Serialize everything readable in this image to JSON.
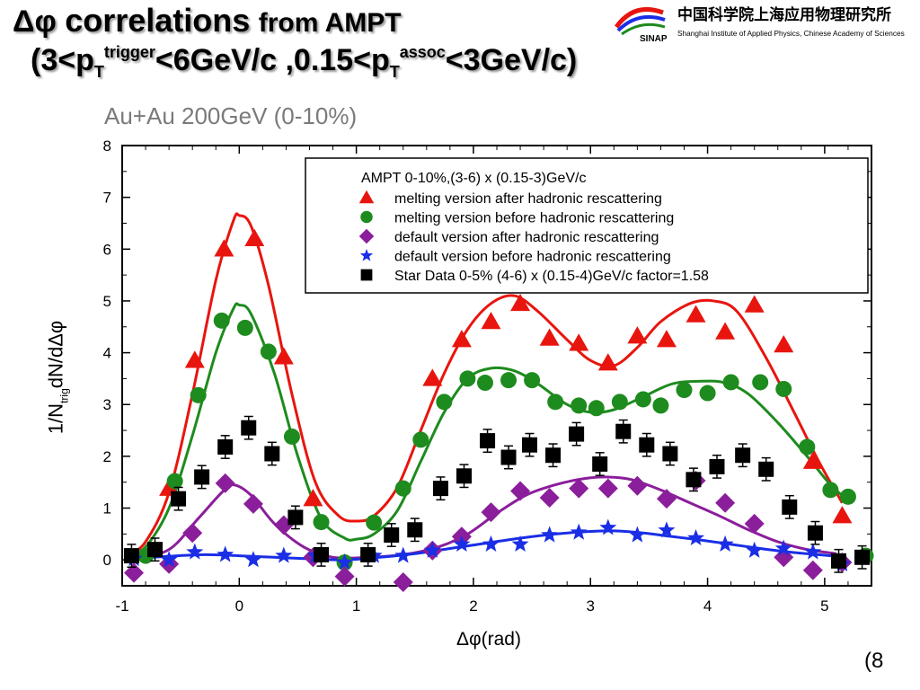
{
  "header": {
    "title_delta_phi": "Δφ",
    "title_main": "correlations",
    "title_rest": "from AMPT",
    "subtitle_line": {
      "open": "(3<p",
      "sub1": "T",
      "sup1": "trigger",
      "mid": "<6GeV/c ,0.15<p",
      "sub2": "T",
      "sup2": "assoc",
      "close": "<3GeV/c)"
    },
    "system": "Au+Au 200GeV (0-10%)"
  },
  "logo": {
    "chinese": "中国科学院上海应用物理研究所",
    "english": "Shanghai Institute of Applied Physics, Chinese Academy of Sciences",
    "abbrev": "SINAP"
  },
  "slide_number": "(8",
  "colors": {
    "red": "#e8150e",
    "green": "#1e8b1e",
    "purple": "#8b1e9b",
    "blue": "#1a2ee6",
    "black": "#000000"
  },
  "chart_data": {
    "type": "scatter",
    "ylabel": {
      "pre": "1/N",
      "sub": "trig",
      "post": "dN/dΔφ"
    },
    "xlabel": "Δφ(rad)",
    "xlim": [
      -1,
      5.4
    ],
    "ylim": [
      -0.5,
      8
    ],
    "x_ticks": [
      "-1",
      "0",
      "1",
      "2",
      "3",
      "4",
      "5"
    ],
    "y_ticks": [
      "0",
      "1",
      "2",
      "3",
      "4",
      "5",
      "6",
      "7",
      "8"
    ],
    "legend": {
      "header": "AMPT 0-10%,(3-6) x (0.15-3)GeV/c",
      "placement": "top-right",
      "entries": [
        {
          "label": "melting version after hadronic rescattering",
          "marker": "triangle",
          "color": "#e8150e"
        },
        {
          "label": "melting version before hadronic rescattering",
          "marker": "circle",
          "color": "#1e8b1e"
        },
        {
          "label": "default version after hadronic rescattering",
          "marker": "diamond",
          "color": "#8b1e9b"
        },
        {
          "label": "default version before hadronic rescattering",
          "marker": "star",
          "color": "#1a2ee6"
        },
        {
          "label": "Star Data 0-5% (4-6) x (0.15-4)GeV/c factor=1.58",
          "marker": "square",
          "color": "#000000"
        }
      ]
    },
    "series": [
      {
        "name": "melting version after hadronic rescattering",
        "marker": "triangle",
        "color": "#e8150e",
        "points": [
          [
            -0.6,
            1.38
          ],
          [
            -0.38,
            3.85
          ],
          [
            -0.13,
            6.0
          ],
          [
            0.13,
            6.2
          ],
          [
            0.38,
            3.92
          ],
          [
            0.63,
            1.18
          ],
          [
            1.65,
            3.5
          ],
          [
            1.9,
            4.25
          ],
          [
            2.15,
            4.6
          ],
          [
            2.4,
            4.95
          ],
          [
            2.65,
            4.28
          ],
          [
            2.9,
            4.18
          ],
          [
            3.15,
            3.8
          ],
          [
            3.4,
            4.32
          ],
          [
            3.65,
            4.25
          ],
          [
            3.9,
            4.73
          ],
          [
            4.15,
            4.4
          ],
          [
            4.4,
            4.92
          ],
          [
            4.65,
            4.15
          ],
          [
            4.9,
            1.9
          ],
          [
            5.15,
            0.85
          ]
        ]
      },
      {
        "name": "melting version before hadronic rescattering",
        "marker": "circle",
        "color": "#1e8b1e",
        "points": [
          [
            -0.8,
            0.08
          ],
          [
            -0.55,
            1.52
          ],
          [
            -0.35,
            3.18
          ],
          [
            -0.15,
            4.62
          ],
          [
            0.05,
            4.48
          ],
          [
            0.25,
            4.02
          ],
          [
            0.45,
            2.38
          ],
          [
            0.7,
            0.73
          ],
          [
            0.9,
            -0.05
          ],
          [
            1.15,
            0.72
          ],
          [
            1.4,
            1.38
          ],
          [
            1.55,
            2.32
          ],
          [
            1.75,
            3.05
          ],
          [
            1.95,
            3.5
          ],
          [
            2.1,
            3.42
          ],
          [
            2.3,
            3.47
          ],
          [
            2.5,
            3.47
          ],
          [
            2.7,
            3.05
          ],
          [
            2.9,
            2.98
          ],
          [
            3.05,
            2.93
          ],
          [
            3.25,
            3.05
          ],
          [
            3.45,
            3.1
          ],
          [
            3.6,
            2.98
          ],
          [
            3.8,
            3.28
          ],
          [
            4.0,
            3.22
          ],
          [
            4.2,
            3.43
          ],
          [
            4.45,
            3.43
          ],
          [
            4.65,
            3.3
          ],
          [
            4.85,
            2.18
          ],
          [
            5.05,
            1.35
          ],
          [
            5.2,
            1.22
          ],
          [
            5.35,
            0.08
          ]
        ]
      },
      {
        "name": "default version after hadronic rescattering",
        "marker": "diamond",
        "color": "#8b1e9b",
        "points": [
          [
            -0.9,
            -0.25
          ],
          [
            -0.6,
            -0.08
          ],
          [
            -0.4,
            0.52
          ],
          [
            -0.12,
            1.48
          ],
          [
            0.12,
            1.08
          ],
          [
            0.38,
            0.67
          ],
          [
            0.63,
            0.05
          ],
          [
            0.9,
            -0.32
          ],
          [
            1.4,
            -0.43
          ],
          [
            1.65,
            0.18
          ],
          [
            1.9,
            0.45
          ],
          [
            2.15,
            0.92
          ],
          [
            2.4,
            1.33
          ],
          [
            2.65,
            1.2
          ],
          [
            2.9,
            1.38
          ],
          [
            3.15,
            1.38
          ],
          [
            3.4,
            1.43
          ],
          [
            3.65,
            1.18
          ],
          [
            3.9,
            1.53
          ],
          [
            4.15,
            1.1
          ],
          [
            4.4,
            0.7
          ],
          [
            4.65,
            0.05
          ],
          [
            4.9,
            -0.2
          ],
          [
            5.15,
            -0.05
          ]
        ]
      },
      {
        "name": "default version before hadronic rescattering",
        "marker": "star",
        "color": "#1a2ee6",
        "points": [
          [
            -0.9,
            0.02
          ],
          [
            -0.6,
            0.0
          ],
          [
            -0.38,
            0.15
          ],
          [
            -0.12,
            0.1
          ],
          [
            0.12,
            0.0
          ],
          [
            0.38,
            0.08
          ],
          [
            0.65,
            0.08
          ],
          [
            0.9,
            -0.05
          ],
          [
            1.15,
            0.08
          ],
          [
            1.4,
            0.08
          ],
          [
            1.65,
            0.18
          ],
          [
            1.9,
            0.3
          ],
          [
            2.15,
            0.3
          ],
          [
            2.4,
            0.3
          ],
          [
            2.65,
            0.48
          ],
          [
            2.9,
            0.53
          ],
          [
            3.15,
            0.62
          ],
          [
            3.4,
            0.48
          ],
          [
            3.65,
            0.57
          ],
          [
            3.9,
            0.42
          ],
          [
            4.15,
            0.3
          ],
          [
            4.4,
            0.18
          ],
          [
            4.65,
            0.22
          ],
          [
            4.9,
            0.15
          ],
          [
            5.15,
            -0.08
          ]
        ]
      },
      {
        "name": "Star Data 0-5% (4-6) x (0.15-4)GeV/c factor=1.58",
        "marker": "square",
        "color": "#000000",
        "errors": true,
        "points": [
          [
            -0.92,
            0.08,
            0.22
          ],
          [
            -0.72,
            0.2,
            0.22
          ],
          [
            -0.52,
            1.18,
            0.22
          ],
          [
            -0.32,
            1.6,
            0.22
          ],
          [
            -0.12,
            2.18,
            0.22
          ],
          [
            0.08,
            2.55,
            0.22
          ],
          [
            0.28,
            2.05,
            0.22
          ],
          [
            0.48,
            0.82,
            0.22
          ],
          [
            0.7,
            0.1,
            0.22
          ],
          [
            1.1,
            0.1,
            0.22
          ],
          [
            1.3,
            0.48,
            0.22
          ],
          [
            1.5,
            0.58,
            0.22
          ],
          [
            1.72,
            1.38,
            0.22
          ],
          [
            1.92,
            1.62,
            0.22
          ],
          [
            2.12,
            2.3,
            0.22
          ],
          [
            2.3,
            1.98,
            0.22
          ],
          [
            2.48,
            2.22,
            0.22
          ],
          [
            2.68,
            2.02,
            0.22
          ],
          [
            2.88,
            2.43,
            0.22
          ],
          [
            3.08,
            1.85,
            0.22
          ],
          [
            3.28,
            2.48,
            0.22
          ],
          [
            3.48,
            2.22,
            0.22
          ],
          [
            3.68,
            2.05,
            0.22
          ],
          [
            3.88,
            1.55,
            0.22
          ],
          [
            4.08,
            1.8,
            0.22
          ],
          [
            4.3,
            2.02,
            0.22
          ],
          [
            4.5,
            1.75,
            0.22
          ],
          [
            4.7,
            1.02,
            0.22
          ],
          [
            4.92,
            0.52,
            0.22
          ],
          [
            5.12,
            -0.02,
            0.22
          ],
          [
            5.32,
            0.05,
            0.22
          ]
        ]
      }
    ],
    "curves": [
      {
        "name": "melting version after hadronic rescattering",
        "color": "#e8150e",
        "points": [
          [
            -0.95,
            0.1
          ],
          [
            -0.8,
            0.35
          ],
          [
            -0.6,
            1.3
          ],
          [
            -0.4,
            3.2
          ],
          [
            -0.2,
            5.4
          ],
          [
            -0.05,
            6.55
          ],
          [
            0.0,
            6.65
          ],
          [
            0.1,
            6.45
          ],
          [
            0.25,
            5.3
          ],
          [
            0.45,
            3.2
          ],
          [
            0.65,
            1.5
          ],
          [
            0.85,
            0.85
          ],
          [
            1.0,
            0.75
          ],
          [
            1.15,
            0.85
          ],
          [
            1.35,
            1.4
          ],
          [
            1.55,
            2.5
          ],
          [
            1.75,
            3.6
          ],
          [
            1.95,
            4.45
          ],
          [
            2.15,
            4.95
          ],
          [
            2.35,
            5.1
          ],
          [
            2.55,
            4.8
          ],
          [
            2.8,
            4.25
          ],
          [
            3.0,
            3.85
          ],
          [
            3.2,
            3.75
          ],
          [
            3.4,
            4.1
          ],
          [
            3.6,
            4.6
          ],
          [
            3.85,
            4.95
          ],
          [
            4.05,
            5.0
          ],
          [
            4.25,
            4.8
          ],
          [
            4.5,
            3.9
          ],
          [
            4.75,
            2.8
          ],
          [
            4.95,
            1.9
          ],
          [
            5.15,
            1.1
          ]
        ]
      },
      {
        "name": "melting version before hadronic rescattering",
        "color": "#1e8b1e",
        "points": [
          [
            -0.95,
            0.05
          ],
          [
            -0.8,
            0.25
          ],
          [
            -0.6,
            1.0
          ],
          [
            -0.4,
            2.4
          ],
          [
            -0.2,
            4.0
          ],
          [
            -0.05,
            4.85
          ],
          [
            0.0,
            4.92
          ],
          [
            0.1,
            4.75
          ],
          [
            0.3,
            3.6
          ],
          [
            0.5,
            2.0
          ],
          [
            0.7,
            0.8
          ],
          [
            0.9,
            0.42
          ],
          [
            1.0,
            0.4
          ],
          [
            1.15,
            0.5
          ],
          [
            1.35,
            0.95
          ],
          [
            1.55,
            1.9
          ],
          [
            1.75,
            2.85
          ],
          [
            1.95,
            3.5
          ],
          [
            2.15,
            3.7
          ],
          [
            2.35,
            3.65
          ],
          [
            2.55,
            3.4
          ],
          [
            2.8,
            3.0
          ],
          [
            3.0,
            2.85
          ],
          [
            3.2,
            2.9
          ],
          [
            3.45,
            3.15
          ],
          [
            3.7,
            3.4
          ],
          [
            3.95,
            3.45
          ],
          [
            4.15,
            3.42
          ],
          [
            4.35,
            3.2
          ],
          [
            4.6,
            2.65
          ],
          [
            4.85,
            2.0
          ],
          [
            5.05,
            1.45
          ],
          [
            5.2,
            1.15
          ]
        ]
      },
      {
        "name": "default version after hadronic rescattering",
        "color": "#8b1e9b",
        "points": [
          [
            -0.9,
            0.02
          ],
          [
            -0.6,
            0.2
          ],
          [
            -0.35,
            0.8
          ],
          [
            -0.15,
            1.3
          ],
          [
            -0.05,
            1.45
          ],
          [
            0.1,
            1.25
          ],
          [
            0.3,
            0.7
          ],
          [
            0.55,
            0.25
          ],
          [
            0.8,
            0.05
          ],
          [
            1.1,
            0.05
          ],
          [
            1.4,
            0.1
          ],
          [
            1.7,
            0.25
          ],
          [
            1.95,
            0.5
          ],
          [
            2.2,
            0.9
          ],
          [
            2.45,
            1.25
          ],
          [
            2.7,
            1.45
          ],
          [
            2.95,
            1.57
          ],
          [
            3.15,
            1.6
          ],
          [
            3.35,
            1.55
          ],
          [
            3.6,
            1.35
          ],
          [
            3.85,
            1.1
          ],
          [
            4.1,
            0.85
          ],
          [
            4.35,
            0.58
          ],
          [
            4.6,
            0.35
          ],
          [
            4.85,
            0.2
          ],
          [
            5.1,
            0.12
          ]
        ]
      },
      {
        "name": "default version before hadronic rescattering",
        "color": "#1a2ee6",
        "points": [
          [
            -0.9,
            0.03
          ],
          [
            -0.6,
            0.07
          ],
          [
            -0.3,
            0.1
          ],
          [
            0.0,
            0.08
          ],
          [
            0.3,
            0.05
          ],
          [
            0.6,
            0.02
          ],
          [
            0.9,
            0.0
          ],
          [
            1.2,
            0.05
          ],
          [
            1.5,
            0.12
          ],
          [
            1.8,
            0.22
          ],
          [
            2.1,
            0.32
          ],
          [
            2.4,
            0.42
          ],
          [
            2.7,
            0.5
          ],
          [
            3.0,
            0.55
          ],
          [
            3.2,
            0.56
          ],
          [
            3.45,
            0.52
          ],
          [
            3.7,
            0.45
          ],
          [
            3.95,
            0.38
          ],
          [
            4.2,
            0.3
          ],
          [
            4.45,
            0.22
          ],
          [
            4.7,
            0.15
          ],
          [
            4.95,
            0.1
          ],
          [
            5.15,
            0.06
          ]
        ]
      }
    ]
  }
}
